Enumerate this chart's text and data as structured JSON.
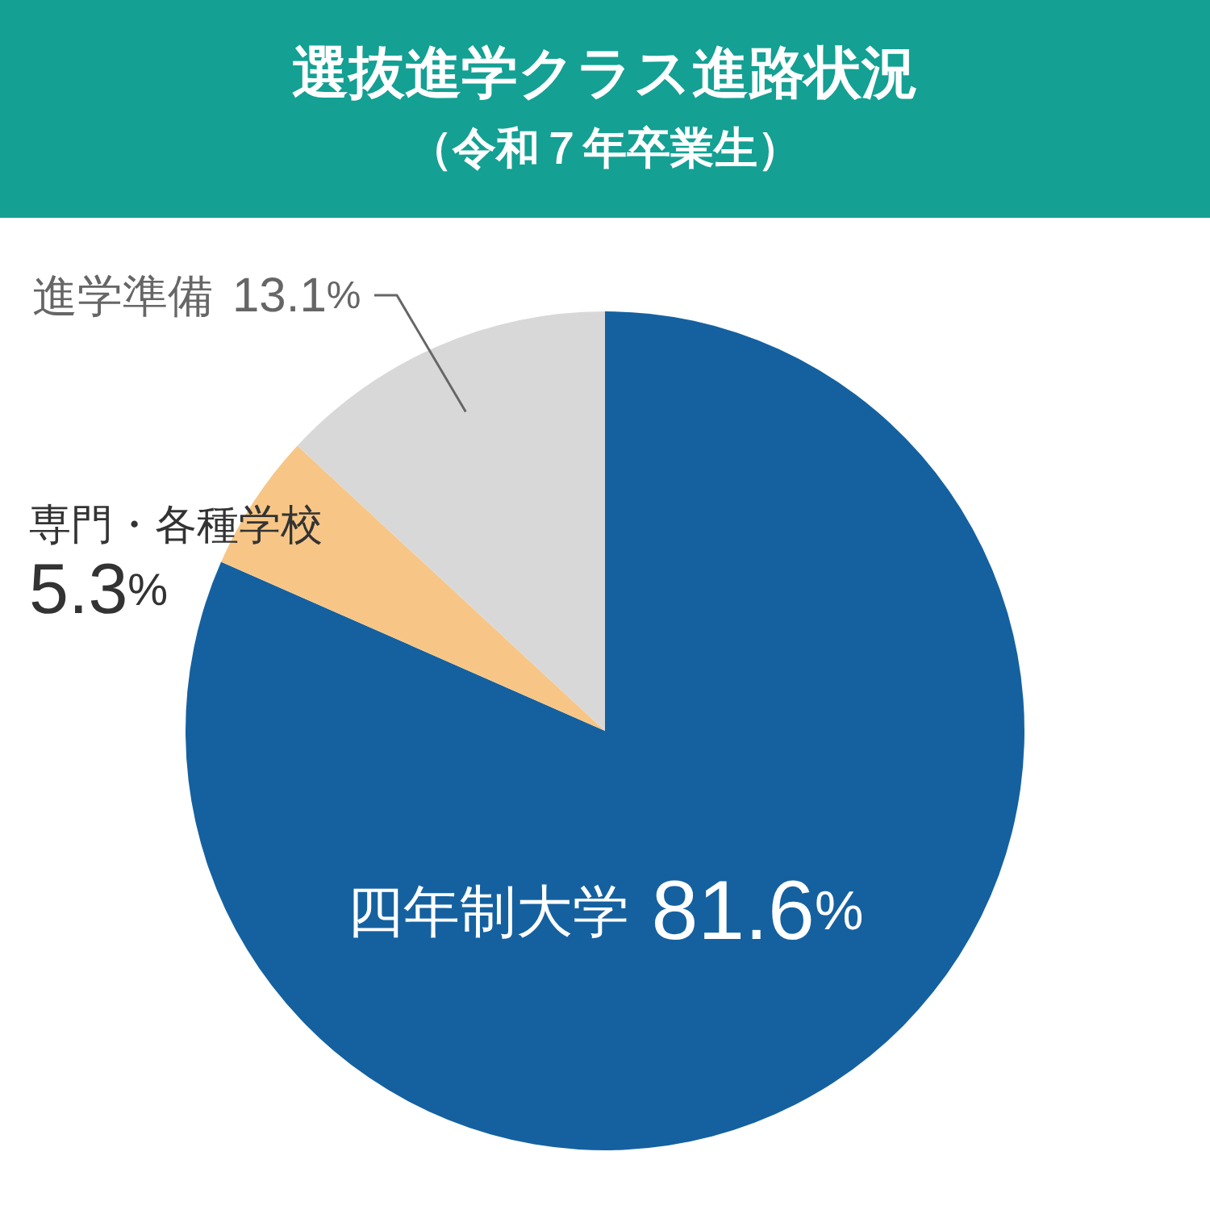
{
  "chart_data": {
    "type": "pie",
    "title": "選抜進学クラス進路状況",
    "subtitle": "（令和７年卒業生）",
    "categories": [
      "四年制大学",
      "専門・各種学校",
      "進学準備"
    ],
    "values": [
      81.6,
      5.3,
      13.1
    ],
    "colors": [
      "#1561a0",
      "#f7c686",
      "#d8d8d8"
    ],
    "value_labels": [
      "81.6%",
      "5.3%",
      "13.1%"
    ]
  }
}
